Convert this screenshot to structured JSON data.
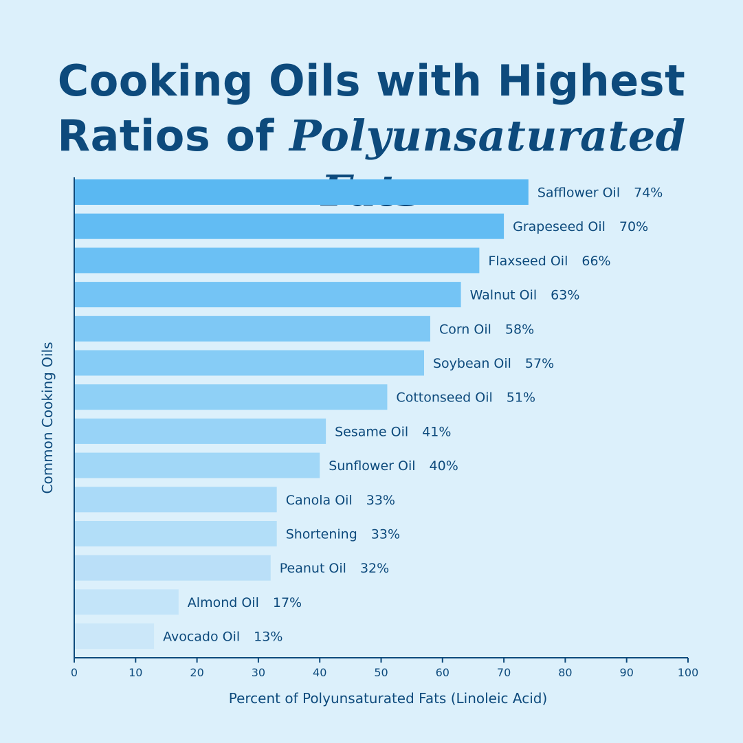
{
  "chart_data": {
    "type": "bar",
    "orientation": "horizontal",
    "title_line1": "Cooking Oils with Highest",
    "title_line2_plain": "Ratios of",
    "title_line2_accent": "Polyunsaturated Fats",
    "xlabel": "Percent of Polyunsaturated Fats (Linoleic Acid)",
    "ylabel": "Common Cooking Oils",
    "xlim": [
      0,
      100
    ],
    "xticks": [
      0,
      10,
      20,
      30,
      40,
      50,
      60,
      70,
      80,
      90,
      100
    ],
    "value_suffix": "%",
    "categories": [
      "Safflower Oil",
      "Grapeseed Oil",
      "Flaxseed Oil",
      "Walnut Oil",
      "Corn Oil",
      "Soybean Oil",
      "Cottonseed Oil",
      "Sesame Oil",
      "Sunflower Oil",
      "Canola Oil",
      "Shortening",
      "Peanut Oil",
      "Almond Oil",
      "Avocado Oil"
    ],
    "values": [
      74,
      70,
      66,
      63,
      58,
      57,
      51,
      41,
      40,
      33,
      33,
      32,
      17,
      13
    ],
    "colors": [
      "#5ab8f2",
      "#62bcf3",
      "#6bc0f4",
      "#74c4f5",
      "#7ec8f5",
      "#86ccf6",
      "#8fd0f6",
      "#98d3f7",
      "#a1d7f7",
      "#aadaf8",
      "#b2def8",
      "#badff8",
      "#c3e4f9",
      "#cbe7f9"
    ],
    "axis_color": "#0d4a7c",
    "grid": false
  }
}
